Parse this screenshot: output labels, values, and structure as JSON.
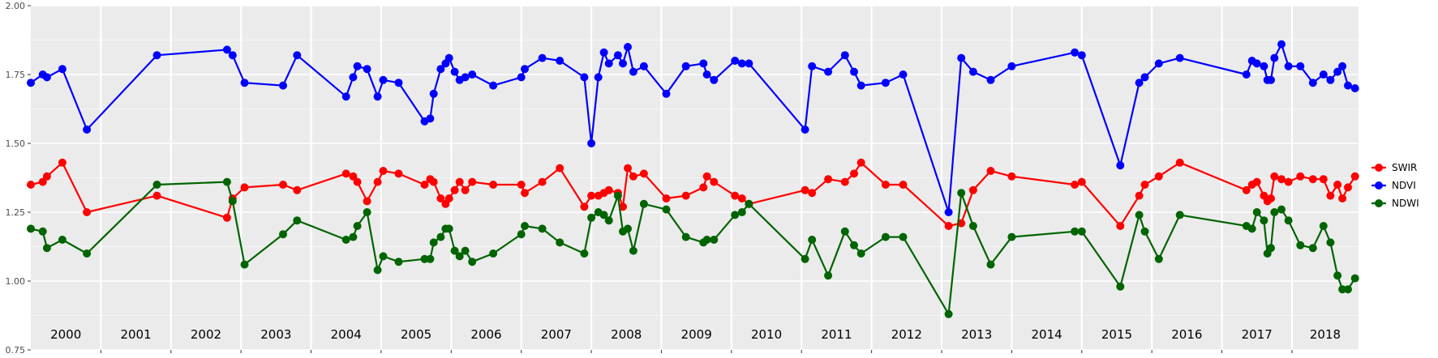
{
  "chart_data": {
    "type": "line",
    "title": "",
    "xlabel": "",
    "ylabel": "",
    "ylim": [
      0.75,
      2.0
    ],
    "yticks": [
      "0.75",
      "1.00",
      "1.25",
      "1.50",
      "1.75",
      "2.00"
    ],
    "xlim": [
      2000.0,
      2018.95
    ],
    "year_labels": [
      "2000",
      "2001",
      "2002",
      "2003",
      "2004",
      "2005",
      "2006",
      "2007",
      "2008",
      "2009",
      "2010",
      "2011",
      "2012",
      "2013",
      "2014",
      "2015",
      "2016",
      "2017",
      "2018"
    ],
    "grid": true,
    "legend_position": "right",
    "series": [
      {
        "name": "SWIR",
        "color": "#ff0000",
        "points": [
          [
            2000.0,
            1.35
          ],
          [
            2000.17,
            1.36
          ],
          [
            2000.23,
            1.38
          ],
          [
            2000.45,
            1.43
          ],
          [
            2000.8,
            1.25
          ],
          [
            2001.8,
            1.31
          ],
          [
            2002.8,
            1.23
          ],
          [
            2002.88,
            1.3
          ],
          [
            2003.05,
            1.34
          ],
          [
            2003.6,
            1.35
          ],
          [
            2003.8,
            1.33
          ],
          [
            2004.5,
            1.39
          ],
          [
            2004.6,
            1.38
          ],
          [
            2004.66,
            1.36
          ],
          [
            2004.8,
            1.29
          ],
          [
            2004.95,
            1.36
          ],
          [
            2005.03,
            1.4
          ],
          [
            2005.25,
            1.39
          ],
          [
            2005.62,
            1.35
          ],
          [
            2005.7,
            1.37
          ],
          [
            2005.75,
            1.36
          ],
          [
            2005.85,
            1.3
          ],
          [
            2005.92,
            1.28
          ],
          [
            2005.97,
            1.3
          ],
          [
            2006.05,
            1.33
          ],
          [
            2006.12,
            1.36
          ],
          [
            2006.2,
            1.33
          ],
          [
            2006.3,
            1.36
          ],
          [
            2006.6,
            1.35
          ],
          [
            2007.0,
            1.35
          ],
          [
            2007.05,
            1.32
          ],
          [
            2007.3,
            1.36
          ],
          [
            2007.55,
            1.41
          ],
          [
            2007.9,
            1.27
          ],
          [
            2008.0,
            1.31
          ],
          [
            2008.1,
            1.31
          ],
          [
            2008.18,
            1.32
          ],
          [
            2008.25,
            1.33
          ],
          [
            2008.38,
            1.32
          ],
          [
            2008.45,
            1.27
          ],
          [
            2008.52,
            1.41
          ],
          [
            2008.6,
            1.38
          ],
          [
            2008.75,
            1.39
          ],
          [
            2009.07,
            1.3
          ],
          [
            2009.35,
            1.31
          ],
          [
            2009.6,
            1.34
          ],
          [
            2009.65,
            1.38
          ],
          [
            2009.75,
            1.36
          ],
          [
            2010.05,
            1.31
          ],
          [
            2010.15,
            1.3
          ],
          [
            2010.25,
            1.28
          ],
          [
            2011.05,
            1.33
          ],
          [
            2011.15,
            1.32
          ],
          [
            2011.38,
            1.37
          ],
          [
            2011.62,
            1.36
          ],
          [
            2011.75,
            1.39
          ],
          [
            2011.85,
            1.43
          ],
          [
            2012.2,
            1.35
          ],
          [
            2012.45,
            1.35
          ],
          [
            2013.1,
            1.2
          ],
          [
            2013.28,
            1.21
          ],
          [
            2013.45,
            1.33
          ],
          [
            2013.7,
            1.4
          ],
          [
            2014.0,
            1.38
          ],
          [
            2014.9,
            1.35
          ],
          [
            2015.0,
            1.36
          ],
          [
            2015.55,
            1.2
          ],
          [
            2015.82,
            1.31
          ],
          [
            2015.9,
            1.35
          ],
          [
            2016.1,
            1.38
          ],
          [
            2016.4,
            1.43
          ],
          [
            2017.35,
            1.33
          ],
          [
            2017.43,
            1.35
          ],
          [
            2017.5,
            1.36
          ],
          [
            2017.6,
            1.31
          ],
          [
            2017.65,
            1.29
          ],
          [
            2017.7,
            1.3
          ],
          [
            2017.75,
            1.38
          ],
          [
            2017.85,
            1.37
          ],
          [
            2017.95,
            1.36
          ],
          [
            2018.12,
            1.38
          ],
          [
            2018.3,
            1.37
          ],
          [
            2018.45,
            1.37
          ],
          [
            2018.55,
            1.31
          ],
          [
            2018.65,
            1.35
          ],
          [
            2018.72,
            1.3
          ],
          [
            2018.8,
            1.34
          ],
          [
            2018.9,
            1.38
          ]
        ]
      },
      {
        "name": "NDVI",
        "color": "#0000ff",
        "points": [
          [
            2000.0,
            1.72
          ],
          [
            2000.17,
            1.75
          ],
          [
            2000.23,
            1.74
          ],
          [
            2000.45,
            1.77
          ],
          [
            2000.8,
            1.55
          ],
          [
            2001.8,
            1.82
          ],
          [
            2002.8,
            1.84
          ],
          [
            2002.88,
            1.82
          ],
          [
            2003.05,
            1.72
          ],
          [
            2003.6,
            1.71
          ],
          [
            2003.8,
            1.82
          ],
          [
            2004.5,
            1.67
          ],
          [
            2004.6,
            1.74
          ],
          [
            2004.66,
            1.78
          ],
          [
            2004.8,
            1.77
          ],
          [
            2004.95,
            1.67
          ],
          [
            2005.03,
            1.73
          ],
          [
            2005.25,
            1.72
          ],
          [
            2005.62,
            1.58
          ],
          [
            2005.7,
            1.59
          ],
          [
            2005.75,
            1.68
          ],
          [
            2005.85,
            1.77
          ],
          [
            2005.92,
            1.79
          ],
          [
            2005.97,
            1.81
          ],
          [
            2006.05,
            1.76
          ],
          [
            2006.12,
            1.73
          ],
          [
            2006.2,
            1.74
          ],
          [
            2006.3,
            1.75
          ],
          [
            2006.6,
            1.71
          ],
          [
            2007.0,
            1.74
          ],
          [
            2007.05,
            1.77
          ],
          [
            2007.3,
            1.81
          ],
          [
            2007.55,
            1.8
          ],
          [
            2007.9,
            1.74
          ],
          [
            2008.0,
            1.5
          ],
          [
            2008.1,
            1.74
          ],
          [
            2008.18,
            1.83
          ],
          [
            2008.25,
            1.79
          ],
          [
            2008.38,
            1.82
          ],
          [
            2008.45,
            1.79
          ],
          [
            2008.52,
            1.85
          ],
          [
            2008.6,
            1.76
          ],
          [
            2008.75,
            1.78
          ],
          [
            2009.07,
            1.68
          ],
          [
            2009.35,
            1.78
          ],
          [
            2009.6,
            1.79
          ],
          [
            2009.65,
            1.75
          ],
          [
            2009.75,
            1.73
          ],
          [
            2010.05,
            1.8
          ],
          [
            2010.15,
            1.79
          ],
          [
            2010.25,
            1.79
          ],
          [
            2011.05,
            1.55
          ],
          [
            2011.15,
            1.78
          ],
          [
            2011.38,
            1.76
          ],
          [
            2011.62,
            1.82
          ],
          [
            2011.75,
            1.76
          ],
          [
            2011.85,
            1.71
          ],
          [
            2012.2,
            1.72
          ],
          [
            2012.45,
            1.75
          ],
          [
            2013.1,
            1.25
          ],
          [
            2013.28,
            1.81
          ],
          [
            2013.45,
            1.76
          ],
          [
            2013.7,
            1.73
          ],
          [
            2014.0,
            1.78
          ],
          [
            2014.9,
            1.83
          ],
          [
            2015.0,
            1.82
          ],
          [
            2015.55,
            1.42
          ],
          [
            2015.82,
            1.72
          ],
          [
            2015.9,
            1.74
          ],
          [
            2016.1,
            1.79
          ],
          [
            2016.4,
            1.81
          ],
          [
            2017.35,
            1.75
          ],
          [
            2017.43,
            1.8
          ],
          [
            2017.5,
            1.79
          ],
          [
            2017.6,
            1.78
          ],
          [
            2017.65,
            1.73
          ],
          [
            2017.7,
            1.73
          ],
          [
            2017.75,
            1.81
          ],
          [
            2017.85,
            1.86
          ],
          [
            2017.95,
            1.78
          ],
          [
            2018.12,
            1.78
          ],
          [
            2018.3,
            1.72
          ],
          [
            2018.45,
            1.75
          ],
          [
            2018.55,
            1.73
          ],
          [
            2018.65,
            1.76
          ],
          [
            2018.72,
            1.78
          ],
          [
            2018.8,
            1.71
          ],
          [
            2018.9,
            1.7
          ]
        ]
      },
      {
        "name": "NDWI",
        "color": "#006400",
        "points": [
          [
            2000.0,
            1.19
          ],
          [
            2000.17,
            1.18
          ],
          [
            2000.23,
            1.12
          ],
          [
            2000.45,
            1.15
          ],
          [
            2000.8,
            1.1
          ],
          [
            2001.8,
            1.35
          ],
          [
            2002.8,
            1.36
          ],
          [
            2002.88,
            1.29
          ],
          [
            2003.05,
            1.06
          ],
          [
            2003.6,
            1.17
          ],
          [
            2003.8,
            1.22
          ],
          [
            2004.5,
            1.15
          ],
          [
            2004.6,
            1.16
          ],
          [
            2004.66,
            1.2
          ],
          [
            2004.8,
            1.25
          ],
          [
            2004.95,
            1.04
          ],
          [
            2005.03,
            1.09
          ],
          [
            2005.25,
            1.07
          ],
          [
            2005.62,
            1.08
          ],
          [
            2005.7,
            1.08
          ],
          [
            2005.75,
            1.14
          ],
          [
            2005.85,
            1.16
          ],
          [
            2005.92,
            1.19
          ],
          [
            2005.97,
            1.19
          ],
          [
            2006.05,
            1.11
          ],
          [
            2006.12,
            1.09
          ],
          [
            2006.2,
            1.11
          ],
          [
            2006.3,
            1.07
          ],
          [
            2006.6,
            1.1
          ],
          [
            2007.0,
            1.17
          ],
          [
            2007.05,
            1.2
          ],
          [
            2007.3,
            1.19
          ],
          [
            2007.55,
            1.14
          ],
          [
            2007.9,
            1.1
          ],
          [
            2008.0,
            1.23
          ],
          [
            2008.1,
            1.25
          ],
          [
            2008.18,
            1.24
          ],
          [
            2008.25,
            1.22
          ],
          [
            2008.38,
            1.31
          ],
          [
            2008.45,
            1.18
          ],
          [
            2008.52,
            1.19
          ],
          [
            2008.6,
            1.11
          ],
          [
            2008.75,
            1.28
          ],
          [
            2009.07,
            1.26
          ],
          [
            2009.35,
            1.16
          ],
          [
            2009.6,
            1.14
          ],
          [
            2009.65,
            1.15
          ],
          [
            2009.75,
            1.15
          ],
          [
            2010.05,
            1.24
          ],
          [
            2010.15,
            1.25
          ],
          [
            2010.25,
            1.28
          ],
          [
            2011.05,
            1.08
          ],
          [
            2011.15,
            1.15
          ],
          [
            2011.38,
            1.02
          ],
          [
            2011.62,
            1.18
          ],
          [
            2011.75,
            1.13
          ],
          [
            2011.85,
            1.1
          ],
          [
            2012.2,
            1.16
          ],
          [
            2012.45,
            1.16
          ],
          [
            2013.1,
            0.88
          ],
          [
            2013.28,
            1.32
          ],
          [
            2013.45,
            1.2
          ],
          [
            2013.7,
            1.06
          ],
          [
            2014.0,
            1.16
          ],
          [
            2014.9,
            1.18
          ],
          [
            2015.0,
            1.18
          ],
          [
            2015.55,
            0.98
          ],
          [
            2015.82,
            1.24
          ],
          [
            2015.9,
            1.18
          ],
          [
            2016.1,
            1.08
          ],
          [
            2016.4,
            1.24
          ],
          [
            2017.35,
            1.2
          ],
          [
            2017.43,
            1.19
          ],
          [
            2017.5,
            1.25
          ],
          [
            2017.6,
            1.22
          ],
          [
            2017.65,
            1.1
          ],
          [
            2017.7,
            1.12
          ],
          [
            2017.75,
            1.25
          ],
          [
            2017.85,
            1.26
          ],
          [
            2017.95,
            1.22
          ],
          [
            2018.12,
            1.13
          ],
          [
            2018.3,
            1.12
          ],
          [
            2018.45,
            1.2
          ],
          [
            2018.55,
            1.14
          ],
          [
            2018.65,
            1.02
          ],
          [
            2018.72,
            0.97
          ],
          [
            2018.8,
            0.97
          ],
          [
            2018.9,
            1.01
          ]
        ]
      }
    ],
    "legend": [
      {
        "name": "SWIR",
        "color": "#ff0000"
      },
      {
        "name": "NDVI",
        "color": "#0000ff"
      },
      {
        "name": "NDWI",
        "color": "#006400"
      }
    ]
  }
}
